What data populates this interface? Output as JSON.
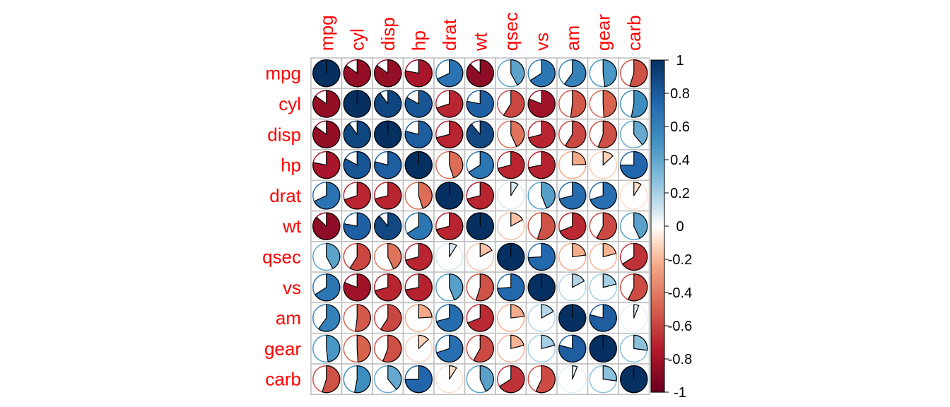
{
  "chart_data": {
    "type": "heatmap",
    "variables": [
      "mpg",
      "cyl",
      "disp",
      "hp",
      "drat",
      "wt",
      "qsec",
      "vs",
      "am",
      "gear",
      "carb"
    ],
    "matrix": [
      [
        1.0,
        -0.85,
        -0.85,
        -0.78,
        0.68,
        -0.87,
        0.42,
        0.66,
        0.6,
        0.48,
        -0.55
      ],
      [
        -0.85,
        1.0,
        0.9,
        0.83,
        -0.7,
        0.78,
        -0.59,
        -0.81,
        -0.52,
        -0.49,
        0.53
      ],
      [
        -0.85,
        0.9,
        1.0,
        0.79,
        -0.71,
        0.89,
        -0.43,
        -0.71,
        -0.59,
        -0.56,
        0.39
      ],
      [
        -0.78,
        0.83,
        0.79,
        1.0,
        -0.45,
        0.66,
        -0.71,
        -0.72,
        -0.24,
        -0.13,
        0.75
      ],
      [
        0.68,
        -0.7,
        -0.71,
        -0.45,
        1.0,
        -0.71,
        0.09,
        0.44,
        0.71,
        0.7,
        -0.09
      ],
      [
        -0.87,
        0.78,
        0.89,
        0.66,
        -0.71,
        1.0,
        -0.17,
        -0.55,
        -0.69,
        -0.58,
        0.43
      ],
      [
        0.42,
        -0.59,
        -0.43,
        -0.71,
        0.09,
        -0.17,
        1.0,
        0.74,
        -0.23,
        -0.21,
        -0.66
      ],
      [
        0.66,
        -0.81,
        -0.71,
        -0.72,
        0.44,
        -0.55,
        0.74,
        1.0,
        0.17,
        0.21,
        -0.57
      ],
      [
        0.6,
        -0.52,
        -0.59,
        -0.24,
        0.71,
        -0.69,
        -0.23,
        0.17,
        1.0,
        0.79,
        0.06
      ],
      [
        0.48,
        -0.49,
        -0.56,
        -0.13,
        0.7,
        -0.58,
        -0.21,
        0.21,
        0.79,
        1.0,
        0.27
      ],
      [
        -0.55,
        0.53,
        0.39,
        0.75,
        -0.09,
        0.43,
        -0.66,
        -0.57,
        0.06,
        0.27,
        1.0
      ]
    ],
    "method": "pie",
    "colorbar": {
      "range": [
        -1,
        1
      ],
      "ticks": [
        "1",
        "0.8",
        "0.6",
        "0.4",
        "0.2",
        "0",
        "-0.2",
        "-0.4",
        "-0.6",
        "-0.8",
        "-1"
      ],
      "tick_values": [
        1,
        0.8,
        0.6,
        0.4,
        0.2,
        0,
        -0.2,
        -0.4,
        -0.6,
        -0.8,
        -1
      ]
    },
    "colors": {
      "negative_end": "#67001F",
      "positive_end": "#053061",
      "label": "#FF0000",
      "grid": "#BEBEBE"
    }
  }
}
